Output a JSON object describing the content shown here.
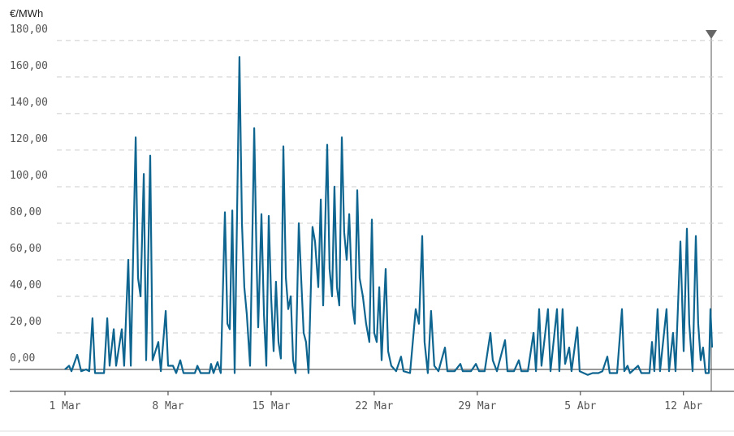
{
  "chart_data": {
    "type": "line",
    "y_label": "€/MWh",
    "color": "#0e6590",
    "x": [
      0,
      0.28,
      0.44,
      0.83,
      1.1,
      1.43,
      1.65,
      1.87,
      2.04,
      2.65,
      2.87,
      3.03,
      3.31,
      3.47,
      3.86,
      4.02,
      4.3,
      4.47,
      4.8,
      4.96,
      5.13,
      5.35,
      5.51,
      5.79,
      5.95,
      6.34,
      6.51,
      6.84,
      7.0,
      7.33,
      7.55,
      7.83,
      8.05,
      8.82,
      8.99,
      9.21,
      9.81,
      9.92,
      10.09,
      10.36,
      10.58,
      10.86,
      11.03,
      11.19,
      11.36,
      11.52,
      11.85,
      12.02,
      12.18,
      12.35,
      12.57,
      12.85,
      13.01,
      13.12,
      13.34,
      13.51,
      13.67,
      13.84,
      14.0,
      14.17,
      14.33,
      14.5,
      14.66,
      14.83,
      15.0,
      15.16,
      15.33,
      15.49,
      15.66,
      15.88,
      16.04,
      16.21,
      16.37,
      16.54,
      16.81,
      16.98,
      17.2,
      17.37,
      17.53,
      17.81,
      17.97,
      18.14,
      18.3,
      18.47,
      18.63,
      18.8,
      18.96,
      19.13,
      19.3,
      19.52,
      19.68,
      19.85,
      20.01,
      20.23,
      20.45,
      20.67,
      20.84,
      21.0,
      21.17,
      21.34,
      21.5,
      21.78,
      21.94,
      22.16,
      22.49,
      22.82,
      22.99,
      23.43,
      23.82,
      24.04,
      24.26,
      24.42,
      24.64,
      24.86,
      25.08,
      25.36,
      25.8,
      25.97,
      26.46,
      26.85,
      27.01,
      27.57,
      27.9,
      28.12,
      28.5,
      28.89,
      29.05,
      29.33,
      29.88,
      30.05,
      30.49,
      30.82,
      30.99,
      31.43,
      31.82,
      31.98,
      32.2,
      32.36,
      32.8,
      32.97,
      33.41,
      33.57,
      33.79,
      33.96,
      34.24,
      34.4,
      34.79,
      34.95,
      35.5,
      35.83,
      36.22,
      36.5,
      36.83,
      36.99,
      37.49,
      37.82,
      37.98,
      38.2,
      38.37,
      38.92,
      39.14,
      39.69,
      39.86,
      40.02,
      40.24,
      40.41,
      40.85,
      41.02,
      41.29,
      41.46,
      41.79,
      42.01,
      42.23,
      42.39,
      42.62,
      42.84,
      43.0,
      43.17,
      43.33,
      43.5,
      43.72,
      43.83,
      43.94
    ],
    "values": [
      0,
      2,
      -1,
      8,
      -1,
      0,
      -1,
      28,
      -2,
      -2,
      28,
      2,
      22,
      2,
      22,
      2,
      60,
      2,
      127,
      50,
      40,
      107,
      5,
      117,
      5,
      15,
      -1,
      32,
      2,
      2,
      -2,
      5,
      -2,
      -2,
      2,
      -2,
      -2,
      3,
      -2,
      4,
      -2,
      86,
      25,
      22,
      87,
      -2,
      171,
      80,
      45,
      30,
      2,
      132,
      60,
      23,
      85,
      30,
      2,
      84,
      40,
      10,
      48,
      15,
      6,
      122,
      50,
      33,
      40,
      5,
      -2,
      80,
      50,
      20,
      15,
      -2,
      78,
      70,
      45,
      93,
      35,
      123,
      55,
      40,
      100,
      45,
      35,
      127,
      75,
      60,
      85,
      35,
      25,
      98,
      50,
      40,
      25,
      15,
      82,
      20,
      15,
      45,
      5,
      55,
      10,
      2,
      -1,
      7,
      -1,
      -2,
      33,
      25,
      73,
      15,
      -2,
      32,
      2,
      -1,
      12,
      -1,
      -1,
      3,
      -1,
      -1,
      3,
      -1,
      -1,
      20,
      5,
      -1,
      16,
      -1,
      -1,
      5,
      -1,
      -1,
      20,
      -1,
      33,
      2,
      33,
      -1,
      33,
      -1,
      33,
      3,
      12,
      -1,
      23,
      -1,
      -3,
      -2,
      -2,
      -1,
      7,
      -2,
      -2,
      33,
      -1,
      2,
      -2,
      2,
      -2,
      -2,
      15,
      -1,
      33,
      -1,
      33,
      -1,
      20,
      -1,
      70,
      10,
      77,
      25,
      -1,
      73,
      25,
      5,
      12,
      -2,
      -2,
      33,
      12
    ],
    "xlim": [
      -3.75,
      45.43
    ],
    "xticks": [
      {
        "value": 0,
        "label": "1 Mar"
      },
      {
        "value": 7,
        "label": "8 Mar"
      },
      {
        "value": 14,
        "label": "15 Mar"
      },
      {
        "value": 21,
        "label": "22 Mar"
      },
      {
        "value": 28,
        "label": "29 Mar"
      },
      {
        "value": 35,
        "label": "5 Abr"
      },
      {
        "value": 42,
        "label": "12 Abr"
      }
    ],
    "ylim": [
      -12,
      184.4
    ],
    "yticks": [
      {
        "value": 0,
        "label": "0,00"
      },
      {
        "value": 20,
        "label": "20,00"
      },
      {
        "value": 40,
        "label": "40,00"
      },
      {
        "value": 60,
        "label": "60,00"
      },
      {
        "value": 80,
        "label": "80,00"
      },
      {
        "value": 100,
        "label": "100,00"
      },
      {
        "value": 120,
        "label": "120,00"
      },
      {
        "value": 140,
        "label": "140,00"
      },
      {
        "value": 160,
        "label": "160,00"
      },
      {
        "value": 180,
        "label": "180,00"
      }
    ],
    "grid": true
  }
}
